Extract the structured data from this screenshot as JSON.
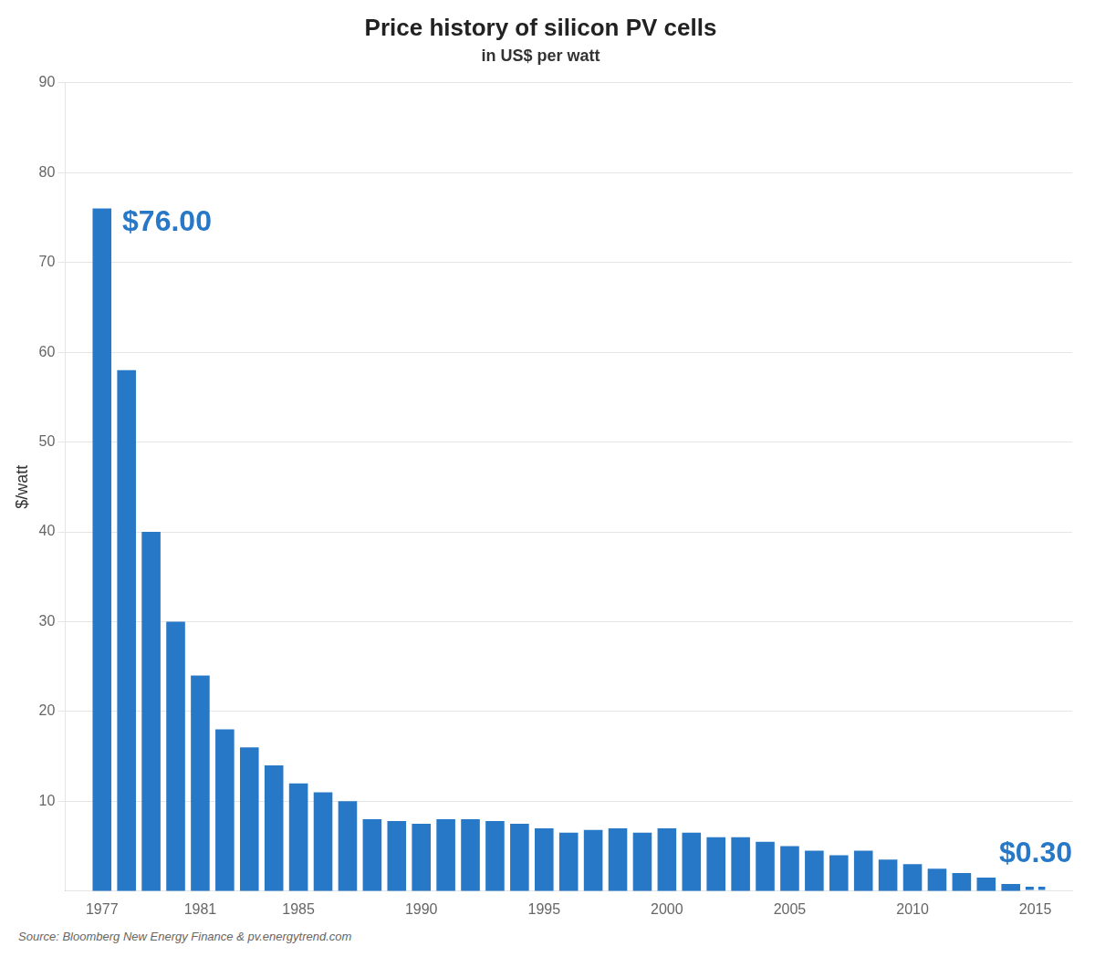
{
  "chart_data": {
    "type": "bar",
    "title": "Price history of silicon PV cells",
    "subtitle": "in US$ per watt",
    "ylabel": "$/watt",
    "source": "Source: Bloomberg New Energy Finance & pv.energytrend.com",
    "x": [
      1977,
      1978,
      1979,
      1980,
      1981,
      1982,
      1983,
      1984,
      1985,
      1986,
      1987,
      1988,
      1989,
      1990,
      1991,
      1992,
      1993,
      1994,
      1995,
      1996,
      1997,
      1998,
      1999,
      2000,
      2001,
      2002,
      2003,
      2004,
      2005,
      2006,
      2007,
      2008,
      2009,
      2010,
      2011,
      2012,
      2013,
      2014,
      2015
    ],
    "series": [
      {
        "type": "bar",
        "color": "#2878c8",
        "values": [
          76.0,
          58.0,
          40.0,
          30.0,
          24.0,
          18.0,
          16.0,
          14.0,
          12.0,
          11.0,
          10.0,
          8.0,
          7.8,
          7.5,
          8.0,
          8.0,
          7.8,
          7.5,
          7.0,
          6.5,
          6.8,
          7.0,
          6.5,
          7.0,
          6.5,
          6.0,
          6.0,
          5.5,
          5.0,
          4.5,
          4.0,
          4.5,
          3.5,
          3.0,
          2.5,
          2.0,
          1.5,
          0.8,
          null
        ]
      },
      {
        "type": "line",
        "line_style": "dashed",
        "color": "#2878c8",
        "values": [
          null,
          null,
          null,
          null,
          null,
          null,
          null,
          null,
          null,
          null,
          null,
          null,
          null,
          null,
          null,
          null,
          null,
          null,
          null,
          null,
          null,
          null,
          null,
          null,
          null,
          null,
          null,
          null,
          null,
          null,
          null,
          null,
          null,
          null,
          null,
          null,
          null,
          null,
          0.3
        ]
      }
    ],
    "annotations": [
      {
        "text": "$76.00",
        "color": "#2878c8"
      },
      {
        "text": "$0.30",
        "color": "#2878c8"
      }
    ],
    "xlim": [
      1975.5,
      2016.5
    ],
    "xticks": [
      1977,
      1981,
      1985,
      1990,
      1995,
      2000,
      2005,
      2010,
      2015
    ],
    "ylim": [
      0,
      90
    ],
    "yticks": [
      10,
      20,
      30,
      40,
      50,
      60,
      70,
      80,
      90
    ],
    "grid": "y"
  }
}
